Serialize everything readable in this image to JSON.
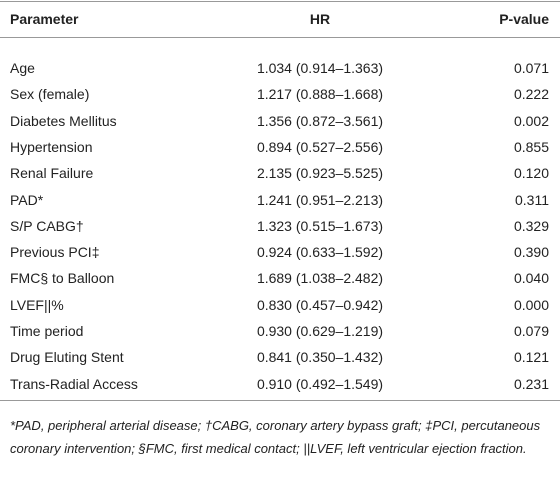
{
  "table": {
    "header": [
      "Parameter",
      "HR",
      "P-value"
    ],
    "rows": [
      [
        "Age",
        "1.034 (0.914–1.363)",
        "0.071"
      ],
      [
        "Sex (female)",
        "1.217 (0.888–1.668)",
        "0.222"
      ],
      [
        "Diabetes Mellitus",
        "1.356 (0.872–3.561)",
        "0.002"
      ],
      [
        "Hypertension",
        "0.894 (0.527–2.556)",
        "0.855"
      ],
      [
        "Renal Failure",
        "2.135 (0.923–5.525)",
        "0.120"
      ],
      [
        "PAD*",
        "1.241 (0.951–2.213)",
        "0.311"
      ],
      [
        "S/P CABG†",
        "1.323 (0.515–1.673)",
        "0.329"
      ],
      [
        "Previous PCI‡",
        "0.924 (0.633–1.592)",
        "0.390"
      ],
      [
        "FMC§ to Balloon",
        "1.689 (1.038–2.482)",
        "0.040"
      ],
      [
        "LVEF||%",
        "0.830 (0.457–0.942)",
        "0.000"
      ],
      [
        "Time period",
        "0.930 (0.629–1.219)",
        "0.079"
      ],
      [
        "Drug Eluting Stent",
        "0.841 (0.350–1.432)",
        "0.121"
      ],
      [
        "Trans-Radial Access",
        "0.910 (0.492–1.549)",
        "0.231"
      ]
    ]
  },
  "footnote": "*PAD, peripheral arterial disease; †CABG, coronary artery bypass graft; ‡PCI, percutaneous coronary intervention; §FMC, first medical contact; ||LVEF, left ventricular ejection fraction."
}
